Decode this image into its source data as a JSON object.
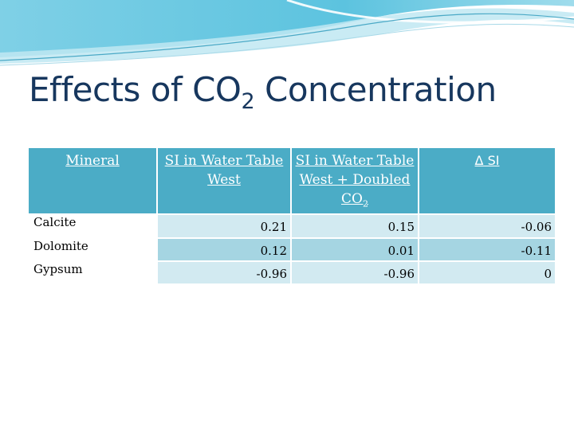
{
  "slide": {
    "title_prefix": "Effects of CO",
    "title_sub": "2",
    "title_suffix": " Concentration"
  },
  "table": {
    "headers": {
      "mineral": "Mineral",
      "si_west": "SI in Water Table West",
      "si_doubled_main": "SI in Water Table West + Doubled CO",
      "si_doubled_sub": "2",
      "delta": "Δ SI"
    },
    "rows": [
      {
        "mineral": "Calcite",
        "si_west": "0.21",
        "si_doubled": "0.15",
        "delta": "-0.06"
      },
      {
        "mineral": "Dolomite",
        "si_west": "0.12",
        "si_doubled": "0.01",
        "delta": "-0.11"
      },
      {
        "mineral": "Gypsum",
        "si_west": "-0.96",
        "si_doubled": "-0.96",
        "delta": "0"
      }
    ]
  },
  "colors": {
    "title": "#17375e",
    "header_fill": "#4bacc6",
    "row_light": "#d2eaf1",
    "row_dark": "#a5d5e2"
  }
}
